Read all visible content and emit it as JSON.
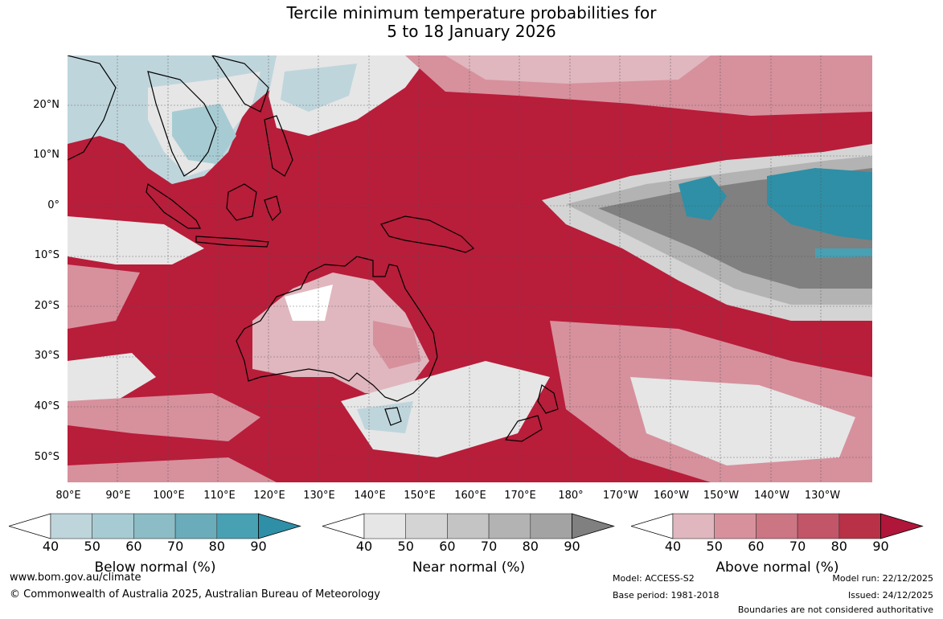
{
  "title": {
    "line1": "Tercile minimum temperature probabilities for",
    "line2": "5 to 18 January 2026"
  },
  "map": {
    "lat_labels": [
      "20°N",
      "10°N",
      "0°",
      "10°S",
      "20°S",
      "30°S",
      "40°S",
      "50°S"
    ],
    "lon_labels": [
      "80°E",
      "90°E",
      "100°E",
      "110°E",
      "120°E",
      "130°E",
      "140°E",
      "150°E",
      "160°E",
      "170°E",
      "180°",
      "170°W",
      "160°W",
      "150°W",
      "140°W",
      "130°W"
    ],
    "colors": {
      "ocean_dominant": "#b81d3a",
      "above_light": "#e0b7bf",
      "near_normal": "#a3a3a3",
      "below_strong": "#2e8fa6",
      "land_outline": "#000000"
    }
  },
  "legend": {
    "tick_labels": [
      "40",
      "50",
      "60",
      "70",
      "80",
      "90"
    ],
    "below": {
      "title": "Below normal (%)",
      "colors": [
        "#ffffff",
        "#bfd5dc",
        "#a7cbd2",
        "#8cbcc5",
        "#6aacba",
        "#48a0b3",
        "#2e8fa6"
      ]
    },
    "near": {
      "title": "Near normal (%)",
      "colors": [
        "#ffffff",
        "#e6e6e6",
        "#d4d4d4",
        "#c4c4c4",
        "#b3b3b3",
        "#a3a3a3",
        "#808080"
      ]
    },
    "above": {
      "title": "Above normal (%)",
      "colors": [
        "#ffffff",
        "#e0b7bf",
        "#d6919d",
        "#cc7583",
        "#c35568",
        "#b83147",
        "#b0163a"
      ]
    }
  },
  "footer": {
    "website": "www.bom.gov.au/climate",
    "copyright": "© Commonwealth of Australia 2025, Australian Bureau of Meteorology",
    "model": "Model: ACCESS-S2",
    "base_period": "Base period: 1981-2018",
    "model_run": "Model run: 22/12/2025",
    "issued": "Issued: 24/12/2025",
    "disclaimer": "Boundaries are not considered authoritative"
  }
}
